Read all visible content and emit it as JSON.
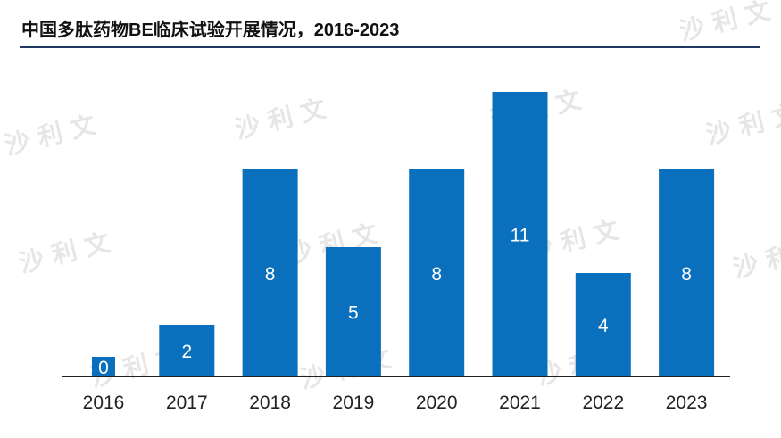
{
  "title": "中国多肽药物BE临床试验开展情况，2016-2023",
  "watermark": "沙 利 文",
  "colors": {
    "bar": "#0a70bd",
    "rule": "#1f3864",
    "axis": "#222222"
  },
  "chart_data": {
    "type": "bar",
    "title": "中国多肽药物BE临床试验开展情况，2016-2023",
    "categories": [
      "2016",
      "2017",
      "2018",
      "2019",
      "2020",
      "2021",
      "2022",
      "2023"
    ],
    "values": [
      0,
      2,
      8,
      5,
      8,
      11,
      4,
      8
    ],
    "data_labels": [
      "0",
      "2",
      "8",
      "5",
      "8",
      "11",
      "4",
      "8"
    ],
    "xlabel": "",
    "ylabel": "",
    "ylim": [
      0,
      12
    ],
    "grid": false,
    "legend": "none"
  }
}
